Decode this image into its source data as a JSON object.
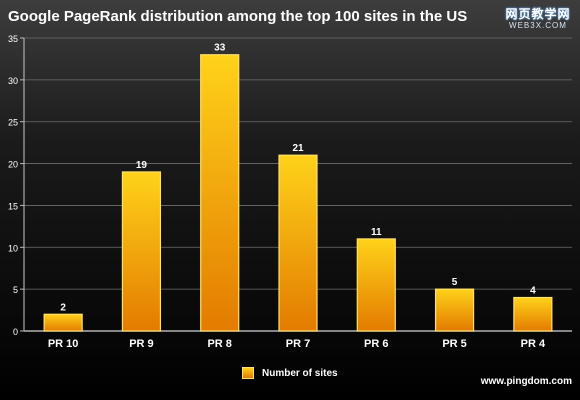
{
  "title": "Google PageRank distribution among the top 100 sites in the US",
  "watermark": {
    "top": "网页教学网",
    "bottom": "WEB3X.COM"
  },
  "footer": {
    "credit": "www.pingdom.com"
  },
  "legend": {
    "label": "Number of sites"
  },
  "colors": {
    "background_top": "#3d3d3d",
    "background_bottom": "#000000",
    "bar_top": "#ffd21a",
    "bar_bottom": "#e37b00",
    "bar_border": "#ffe16b",
    "grid": "#6e6e6e",
    "axis": "#b9b9b9",
    "text": "#ffffff"
  },
  "chart_data": {
    "type": "bar",
    "categories": [
      "PR 10",
      "PR 9",
      "PR 8",
      "PR 7",
      "PR 6",
      "PR 5",
      "PR 4"
    ],
    "values": [
      2,
      19,
      33,
      21,
      11,
      5,
      4
    ],
    "title": "Google PageRank distribution among the top 100 sites in the US",
    "xlabel": "",
    "ylabel": "",
    "ylim": [
      0,
      35
    ],
    "yticks": [
      0,
      5,
      10,
      15,
      20,
      25,
      30,
      35
    ],
    "grid": true,
    "legend": "bottom-center",
    "series": [
      {
        "name": "Number of sites",
        "values": [
          2,
          19,
          33,
          21,
          11,
          5,
          4
        ]
      }
    ]
  }
}
